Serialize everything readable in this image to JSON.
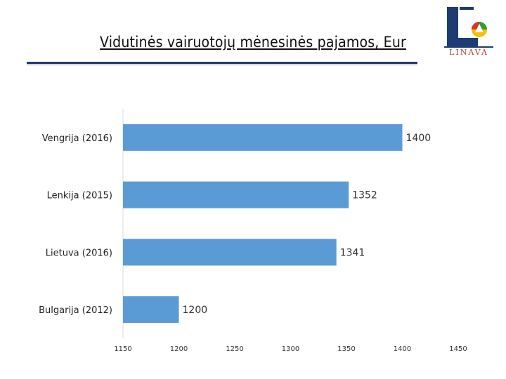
{
  "header": {
    "title": "Vidutinės vairuotojų mėnesinės pajamos, Eur",
    "logo_text": "LINAVA",
    "logo_icon": "linava-logo-icon"
  },
  "colors": {
    "bar": "#5b9bd5",
    "axis": "#d9d9d9",
    "accent": "#1f3b73"
  },
  "chart_data": {
    "type": "bar",
    "orientation": "horizontal",
    "title": "Vidutinės vairuotojų mėnesinės pajamos, Eur",
    "categories": [
      "Vengrija (2016)",
      "Lenkija (2015)",
      "Lietuva (2016)",
      "Bulgarija (2012)"
    ],
    "values": [
      1400,
      1352,
      1341,
      1200
    ],
    "xlim": [
      1150,
      1450
    ],
    "ticks": [
      1150,
      1200,
      1250,
      1300,
      1350,
      1400,
      1450
    ],
    "data_labels": true,
    "grid": false,
    "legend": "none"
  }
}
